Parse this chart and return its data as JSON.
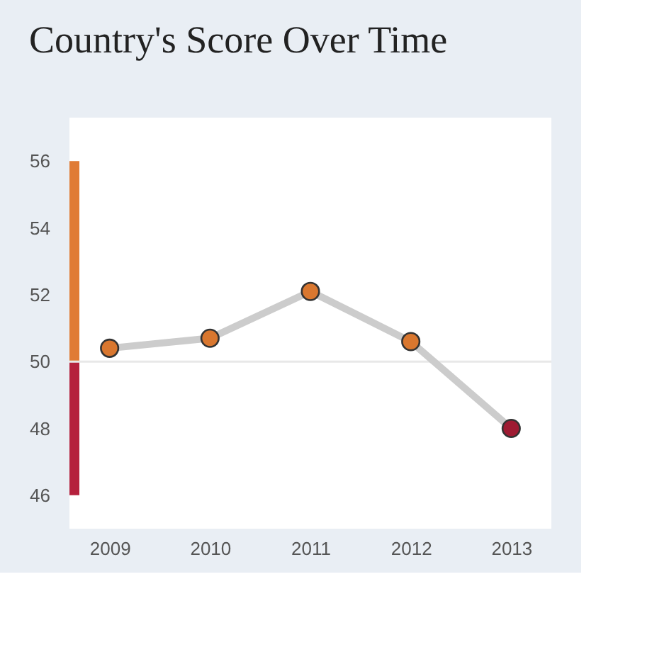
{
  "chart_data": {
    "type": "line",
    "title": "Country's Score Over Time",
    "categories": [
      "2009",
      "2010",
      "2011",
      "2012",
      "2013"
    ],
    "series": [
      {
        "color": "#cccccc",
        "colors": [
          "#d9772f",
          "#d9772f",
          "#d9772f",
          "#d9772f",
          "#9e1b32"
        ],
        "values": [
          50.4,
          50.7,
          52.1,
          50.6,
          48.0
        ]
      }
    ],
    "ylim": [
      45,
      57.3
    ],
    "yticks": [
      46,
      48,
      50,
      52,
      54,
      56
    ],
    "grid": false,
    "marker": "circle",
    "line_style": "solid",
    "ref_lines": [
      {
        "axis": "y",
        "value": 50,
        "color": "#e8e8e8"
      }
    ],
    "bands": [
      {
        "axis": "y",
        "from": 50,
        "to": 56,
        "color": "#e07b35"
      },
      {
        "axis": "y",
        "from": 46,
        "to": 50,
        "color": "#b5213d"
      }
    ]
  }
}
